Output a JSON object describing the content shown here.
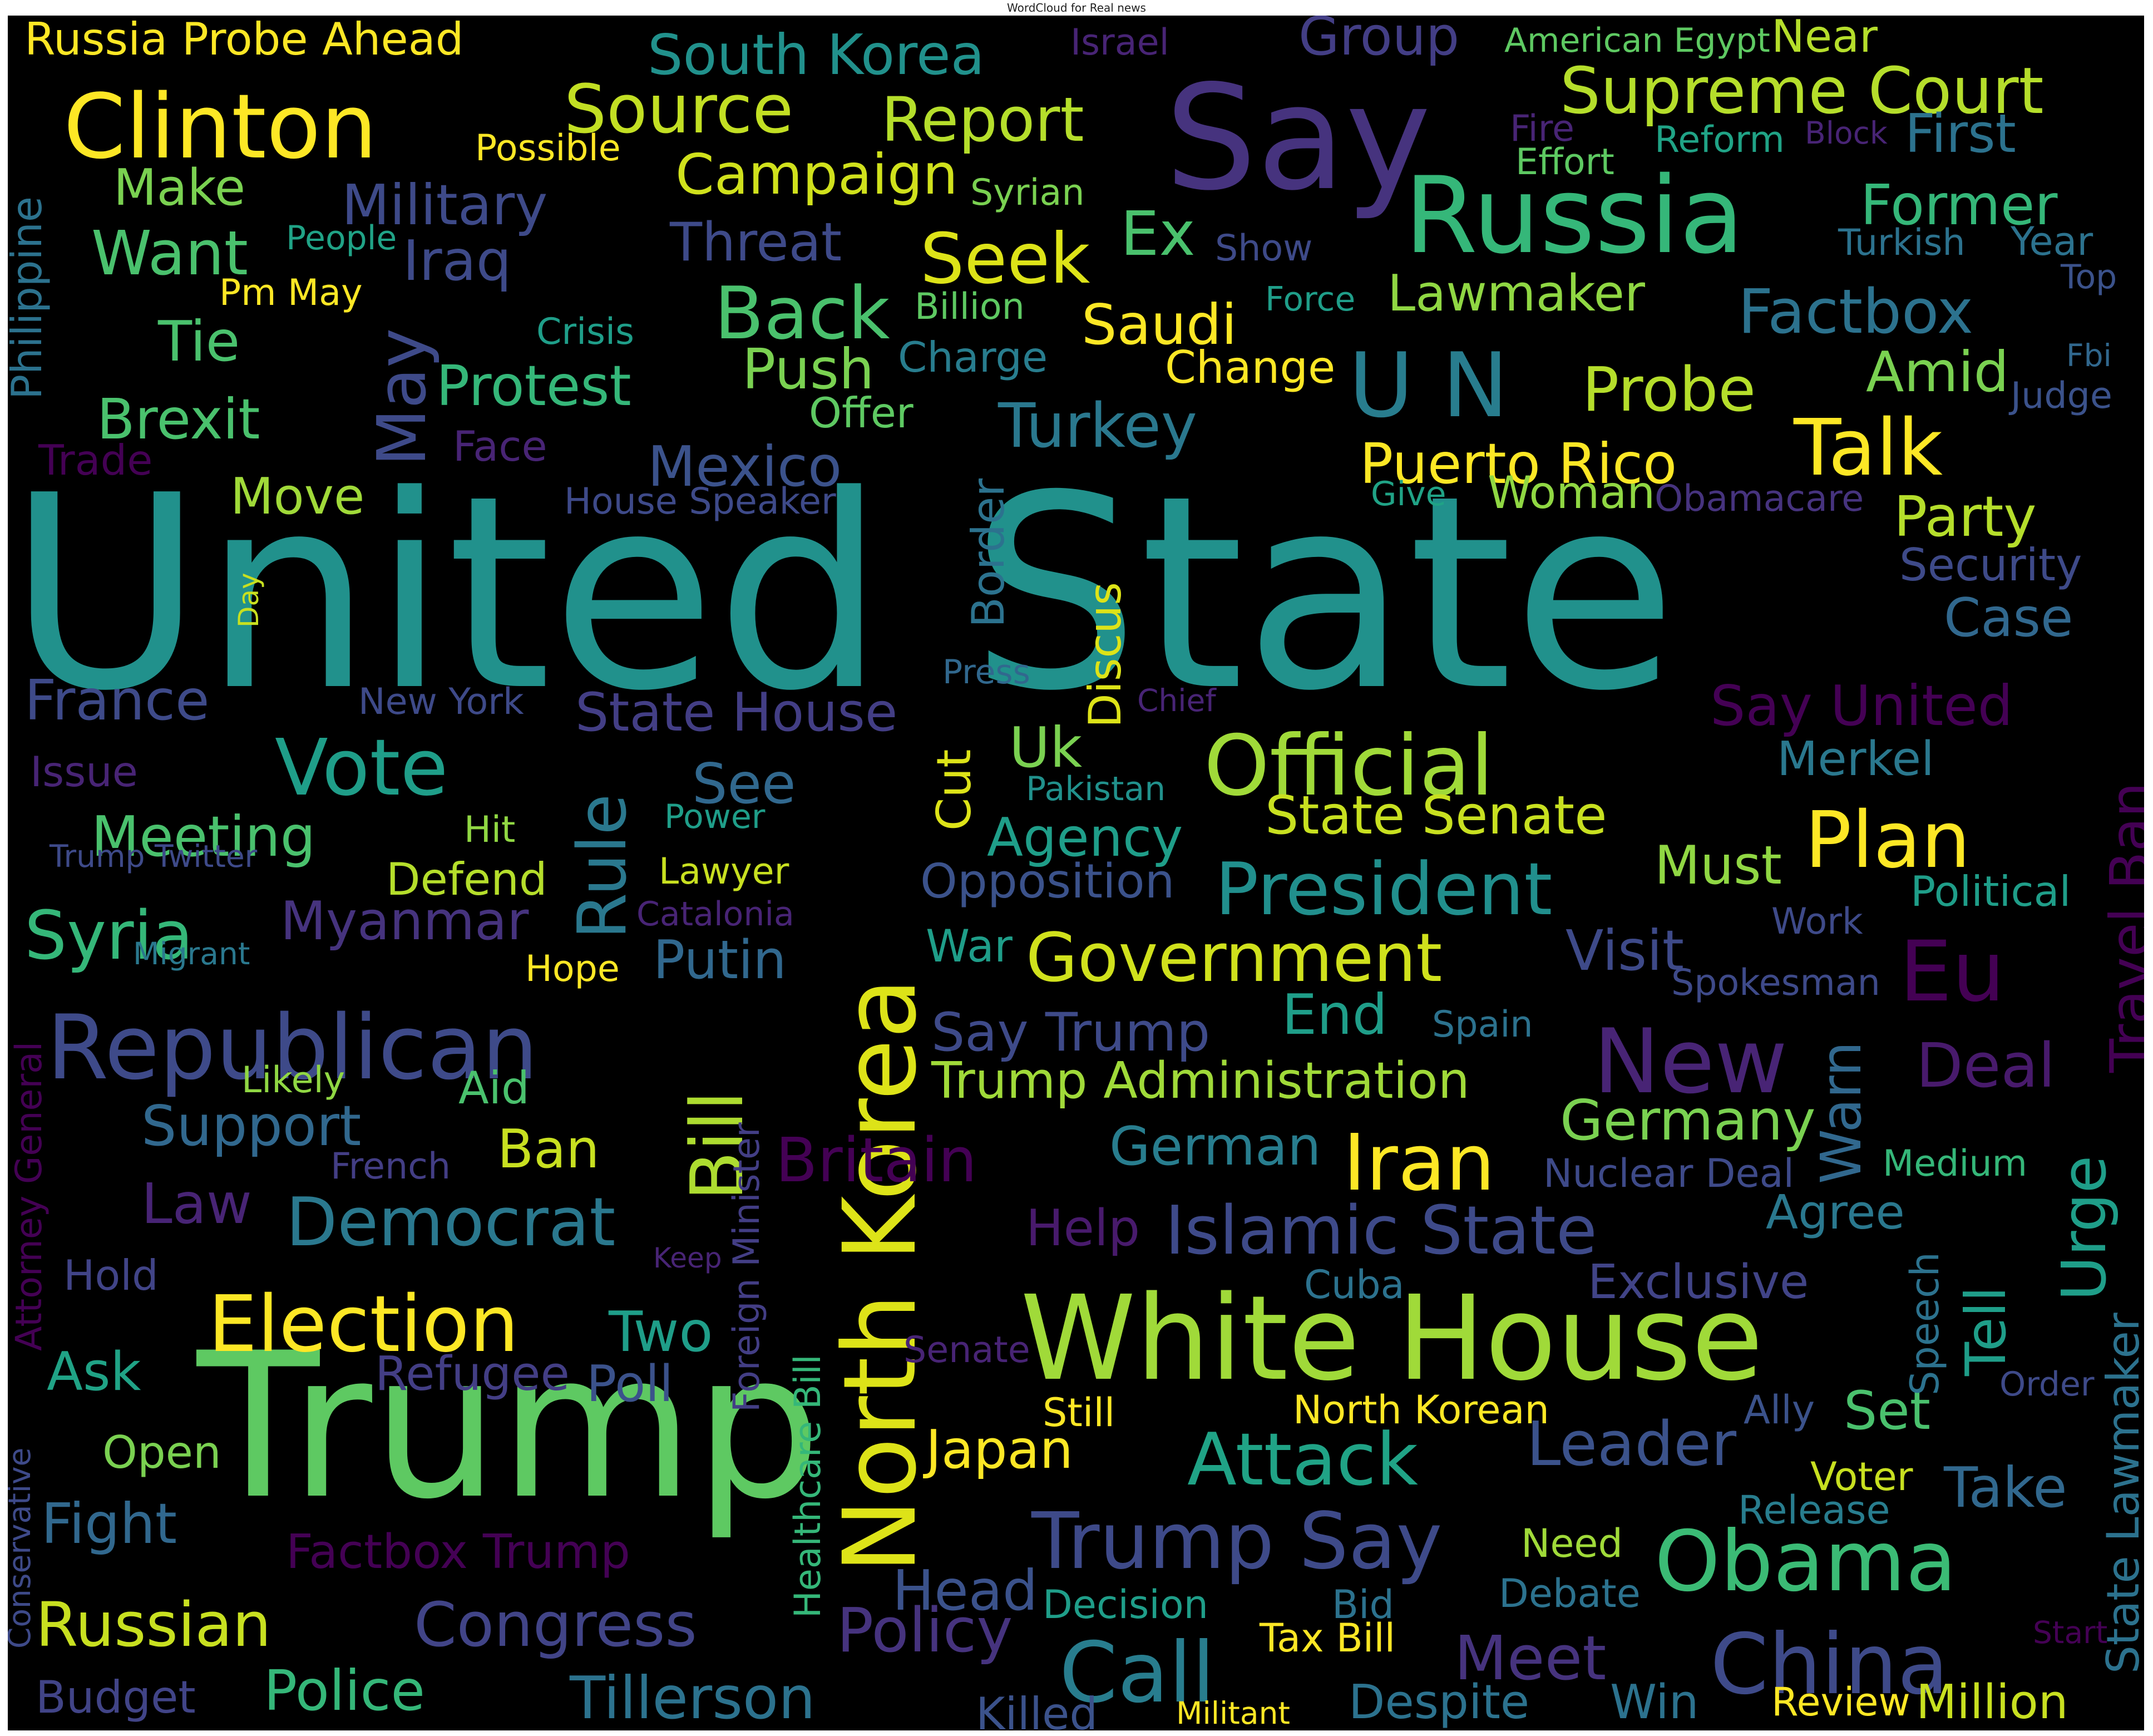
{
  "title": "WordCloud for Real news",
  "words": [
    {
      "text": "United State",
      "color": "#21918c"
    },
    {
      "text": "Trump",
      "color": "#5ec962"
    },
    {
      "text": "White House",
      "color": "#a0da39"
    },
    {
      "text": "North Korea",
      "color": "#dde318"
    },
    {
      "text": "Say",
      "color": "#46337e"
    },
    {
      "text": "Russia",
      "color": "#35b779"
    },
    {
      "text": "Clinton",
      "color": "#fde725"
    },
    {
      "text": "Republican",
      "color": "#3e4a89"
    },
    {
      "text": "Official",
      "color": "#a0da39"
    },
    {
      "text": "Obama",
      "color": "#3bbb75"
    },
    {
      "text": "China",
      "color": "#3e4a89"
    },
    {
      "text": "Election",
      "color": "#fde725"
    },
    {
      "text": "Trump Say",
      "color": "#3e4a89"
    },
    {
      "text": "New",
      "color": "#482475"
    },
    {
      "text": "Government",
      "color": "#d0e11c"
    },
    {
      "text": "Call",
      "color": "#287d8e"
    },
    {
      "text": "Democrat",
      "color": "#2a788e"
    },
    {
      "text": "Islamic State",
      "color": "#3e4a89"
    },
    {
      "text": "Vote",
      "color": "#1f9e89"
    },
    {
      "text": "Attack",
      "color": "#20a386"
    },
    {
      "text": "President",
      "color": "#218f8d"
    },
    {
      "text": "Plan",
      "color": "#fde725"
    },
    {
      "text": "Iran",
      "color": "#fde725"
    },
    {
      "text": "Source",
      "color": "#c2df23"
    },
    {
      "text": "Report",
      "color": "#b5de2b"
    },
    {
      "text": "Supreme Court",
      "color": "#b5de2b"
    },
    {
      "text": "Russian",
      "color": "#c8e020"
    },
    {
      "text": "Congress",
      "color": "#414487"
    },
    {
      "text": "Tillerson",
      "color": "#2c728e"
    },
    {
      "text": "Bill",
      "color": "#addc30"
    },
    {
      "text": "Talk",
      "color": "#fde725"
    },
    {
      "text": "Back",
      "color": "#4ac16d"
    },
    {
      "text": "Seek",
      "color": "#dde318"
    },
    {
      "text": "U N",
      "color": "#287d8e"
    },
    {
      "text": "Eu",
      "color": "#440154"
    },
    {
      "text": "Syria",
      "color": "#35b779"
    },
    {
      "text": "Factbox",
      "color": "#2c728e"
    },
    {
      "text": "South Korea",
      "color": "#21918c"
    },
    {
      "text": "Mexico",
      "color": "#3b528b"
    },
    {
      "text": "Turkey",
      "color": "#2a788e"
    },
    {
      "text": "Puerto Rico",
      "color": "#fde725"
    },
    {
      "text": "Probe",
      "color": "#b5de2b"
    },
    {
      "text": "Former",
      "color": "#35b779"
    },
    {
      "text": "Campaign",
      "color": "#d0e11c"
    },
    {
      "text": "Military",
      "color": "#3e4a89"
    },
    {
      "text": "Protest",
      "color": "#35b779"
    },
    {
      "text": "Brexit",
      "color": "#4ac16d"
    },
    {
      "text": "May",
      "color": "#3e4a89"
    },
    {
      "text": "Rule",
      "color": "#2a788e"
    },
    {
      "text": "Britain",
      "color": "#440154"
    },
    {
      "text": "Leader",
      "color": "#3b528b"
    },
    {
      "text": "Meet",
      "color": "#46337e"
    },
    {
      "text": "Policy",
      "color": "#46337e"
    },
    {
      "text": "Germany",
      "color": "#7ad151"
    },
    {
      "text": "Trump Administration",
      "color": "#a0da39"
    },
    {
      "text": "Support",
      "color": "#31688e"
    },
    {
      "text": "Meeting",
      "color": "#4ac16d"
    },
    {
      "text": "Myanmar",
      "color": "#46337e"
    },
    {
      "text": "Putin",
      "color": "#31688e"
    },
    {
      "text": "Deal",
      "color": "#481a6c"
    },
    {
      "text": "Party",
      "color": "#b5de2b"
    },
    {
      "text": "Agency",
      "color": "#1f9e89"
    },
    {
      "text": "State Senate",
      "color": "#c8e020"
    },
    {
      "text": "Must",
      "color": "#90d743"
    },
    {
      "text": "State House",
      "color": "#433e85"
    },
    {
      "text": "Say Trump",
      "color": "#3e4a89"
    },
    {
      "text": "Visit",
      "color": "#3e4a89"
    },
    {
      "text": "Say United",
      "color": "#440154"
    },
    {
      "text": "Want",
      "color": "#4ac16d"
    },
    {
      "text": "Make",
      "color": "#7ad151"
    },
    {
      "text": "Threat",
      "color": "#3e4a89"
    },
    {
      "text": "Ex",
      "color": "#4ac16d"
    },
    {
      "text": "Iraq",
      "color": "#3e4a89"
    },
    {
      "text": "Lawmaker",
      "color": "#90d743"
    },
    {
      "text": "Saudi",
      "color": "#fde725"
    },
    {
      "text": "Push",
      "color": "#7ad151"
    },
    {
      "text": "Amid",
      "color": "#7ad151"
    },
    {
      "text": "First",
      "color": "#2c728e"
    },
    {
      "text": "Russia Probe Ahead",
      "color": "#fde725"
    },
    {
      "text": "Group",
      "color": "#433e85"
    },
    {
      "text": "Tie",
      "color": "#4ac16d"
    },
    {
      "text": "Move",
      "color": "#a0da39"
    },
    {
      "text": "Woman",
      "color": "#90d743"
    },
    {
      "text": "Security",
      "color": "#3e4a89"
    },
    {
      "text": "Case",
      "color": "#31688e"
    },
    {
      "text": "France",
      "color": "#3e4a89"
    },
    {
      "text": "Uk",
      "color": "#7ad151"
    },
    {
      "text": "See",
      "color": "#31688e"
    },
    {
      "text": "Cut",
      "color": "#dde318"
    },
    {
      "text": "Merkel",
      "color": "#2a788e"
    },
    {
      "text": "Opposition",
      "color": "#3b528b"
    },
    {
      "text": "Political",
      "color": "#1f9e89"
    },
    {
      "text": "Travel Ban",
      "color": "#440154"
    },
    {
      "text": "War",
      "color": "#1f9e89"
    },
    {
      "text": "End",
      "color": "#1f9e89"
    },
    {
      "text": "Warn",
      "color": "#31688e"
    },
    {
      "text": "Urge",
      "color": "#1f9e89"
    },
    {
      "text": "German",
      "color": "#287d8e"
    },
    {
      "text": "Law",
      "color": "#482475"
    },
    {
      "text": "Ban",
      "color": "#c8e020"
    },
    {
      "text": "Help",
      "color": "#481a6c"
    },
    {
      "text": "Agree",
      "color": "#2a788e"
    },
    {
      "text": "Exclusive",
      "color": "#414487"
    },
    {
      "text": "Tell",
      "color": "#1f9e89"
    },
    {
      "text": "Two",
      "color": "#1f9e89"
    },
    {
      "text": "Poll",
      "color": "#3b528b"
    },
    {
      "text": "Refugee",
      "color": "#433e85"
    },
    {
      "text": "Ask",
      "color": "#20a386"
    },
    {
      "text": "Fight",
      "color": "#31688e"
    },
    {
      "text": "Open",
      "color": "#7ad151"
    },
    {
      "text": "Factbox Trump",
      "color": "#440154"
    },
    {
      "text": "Police",
      "color": "#35b779"
    },
    {
      "text": "Budget",
      "color": "#414487"
    },
    {
      "text": "Japan",
      "color": "#fde725"
    },
    {
      "text": "Head",
      "color": "#3b528b"
    },
    {
      "text": "Take",
      "color": "#31688e"
    },
    {
      "text": "Set",
      "color": "#4ac16d"
    },
    {
      "text": "Killed",
      "color": "#3b528b"
    },
    {
      "text": "Despite",
      "color": "#2c728e"
    },
    {
      "text": "Win",
      "color": "#2c728e"
    },
    {
      "text": "Million",
      "color": "#c8e020"
    },
    {
      "text": "Review",
      "color": "#fde725"
    },
    {
      "text": "Tax Bill",
      "color": "#fde725"
    },
    {
      "text": "Decision",
      "color": "#1f9e89"
    },
    {
      "text": "Bid",
      "color": "#2c728e"
    },
    {
      "text": "Debate",
      "color": "#2c728e"
    },
    {
      "text": "Need",
      "color": "#a0da39"
    },
    {
      "text": "Release",
      "color": "#287d8e"
    },
    {
      "text": "Voter",
      "color": "#c8e020"
    },
    {
      "text": "Ally",
      "color": "#3b528b"
    },
    {
      "text": "Still",
      "color": "#fde725"
    },
    {
      "text": "North Korean",
      "color": "#fde725"
    },
    {
      "text": "Senate",
      "color": "#482475"
    },
    {
      "text": "Cuba",
      "color": "#2c728e"
    },
    {
      "text": "Speech",
      "color": "#2c728e"
    },
    {
      "text": "Order",
      "color": "#3e4a89"
    },
    {
      "text": "State Lawmaker",
      "color": "#2c728e"
    },
    {
      "text": "Nuclear Deal",
      "color": "#3e4a89"
    },
    {
      "text": "Medium",
      "color": "#35b779"
    },
    {
      "text": "Spokesman",
      "color": "#3e4a89"
    },
    {
      "text": "Spain",
      "color": "#2c728e"
    },
    {
      "text": "Work",
      "color": "#3e4a89"
    },
    {
      "text": "Healthcare Bill",
      "color": "#35b779"
    },
    {
      "text": "Foreign Minister",
      "color": "#433e85"
    },
    {
      "text": "Keep",
      "color": "#482475"
    },
    {
      "text": "Hope",
      "color": "#fde725"
    },
    {
      "text": "Catalonia",
      "color": "#482475"
    },
    {
      "text": "Lawyer",
      "color": "#c8e020"
    },
    {
      "text": "Power",
      "color": "#1f9e89"
    },
    {
      "text": "Hit",
      "color": "#90d743"
    },
    {
      "text": "Defend",
      "color": "#b5de2b"
    },
    {
      "text": "Aid",
      "color": "#4ac16d"
    },
    {
      "text": "Likely",
      "color": "#90d743"
    },
    {
      "text": "French",
      "color": "#433e85"
    },
    {
      "text": "Pakistan",
      "color": "#21918c"
    },
    {
      "text": "Chief",
      "color": "#482475"
    },
    {
      "text": "Press",
      "color": "#31688e"
    },
    {
      "text": "Discus",
      "color": "#dde318"
    },
    {
      "text": "Border",
      "color": "#2c728e"
    },
    {
      "text": "New York",
      "color": "#3e4a89"
    },
    {
      "text": "House Speaker",
      "color": "#3e4a89"
    },
    {
      "text": "Give",
      "color": "#20a386"
    },
    {
      "text": "Obamacare",
      "color": "#46337e"
    },
    {
      "text": "Offer",
      "color": "#5ec962"
    },
    {
      "text": "Charge",
      "color": "#287d8e"
    },
    {
      "text": "Change",
      "color": "#fde725"
    },
    {
      "text": "Crisis",
      "color": "#1f9e89"
    },
    {
      "text": "Billion",
      "color": "#5ec962"
    },
    {
      "text": "Force",
      "color": "#1f9e89"
    },
    {
      "text": "Show",
      "color": "#3e4a89"
    },
    {
      "text": "Syrian",
      "color": "#7ad151"
    },
    {
      "text": "People",
      "color": "#20a386"
    },
    {
      "text": "Pm May",
      "color": "#fde725"
    },
    {
      "text": "Possible",
      "color": "#fde725"
    },
    {
      "text": "Israel",
      "color": "#482475"
    },
    {
      "text": "American Egypt",
      "color": "#5ec962"
    },
    {
      "text": "Near",
      "color": "#b5de2b"
    },
    {
      "text": "Fire",
      "color": "#482475"
    },
    {
      "text": "Reform",
      "color": "#20a386"
    },
    {
      "text": "Block",
      "color": "#482475"
    },
    {
      "text": "Effort",
      "color": "#5ec962"
    },
    {
      "text": "Turkish",
      "color": "#2c728e"
    },
    {
      "text": "Year",
      "color": "#2c728e"
    },
    {
      "text": "Top",
      "color": "#3b528b"
    },
    {
      "text": "Fbi",
      "color": "#31688e"
    },
    {
      "text": "Judge",
      "color": "#3b528b"
    },
    {
      "text": "Face",
      "color": "#482475"
    },
    {
      "text": "Trade",
      "color": "#440154"
    },
    {
      "text": "Philippine",
      "color": "#2c728e"
    },
    {
      "text": "Issue",
      "color": "#482475"
    },
    {
      "text": "Trump Twitter",
      "color": "#3e4a89"
    },
    {
      "text": "Migrant",
      "color": "#2a788e"
    },
    {
      "text": "Attorney General",
      "color": "#440154"
    },
    {
      "text": "Hold",
      "color": "#414487"
    },
    {
      "text": "Conservative",
      "color": "#3e4a89"
    },
    {
      "text": "Day",
      "color": "#c8e020"
    },
    {
      "text": "Militant",
      "color": "#fde725"
    },
    {
      "text": "Start",
      "color": "#440154"
    }
  ]
}
